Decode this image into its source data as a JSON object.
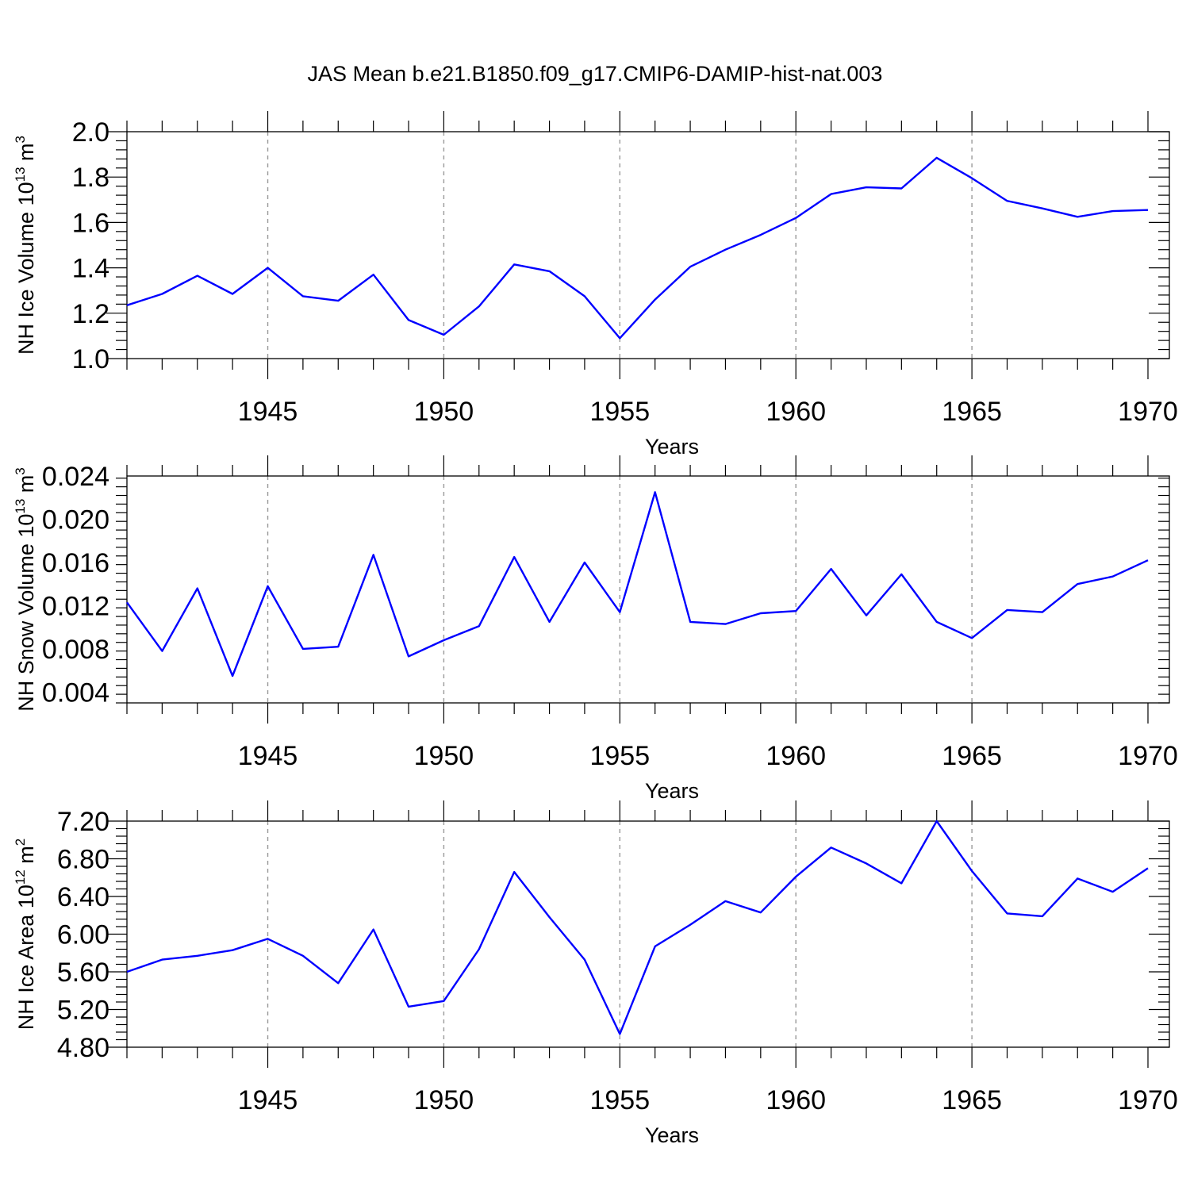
{
  "title": "JAS Mean b.e21.B1850.f09_g17.CMIP6-DAMIP-hist-nat.003",
  "series_color": "#0000ff",
  "chart_data": [
    {
      "type": "line",
      "xlabel": "Years",
      "ylabel_main": "NH Ice Volume 10",
      "ylabel_exp": "13",
      "ylabel_unit": " m",
      "ylabel_unit_exp": "3",
      "xlim": [
        1941,
        1970
      ],
      "ylim": [
        1.0,
        2.0
      ],
      "yticks": [
        1.0,
        1.2,
        1.4,
        1.6,
        1.8,
        2.0
      ],
      "ytick_labels": [
        "1.0",
        "1.2",
        "1.4",
        "1.6",
        "1.8",
        "2.0"
      ],
      "xticks": [
        1945,
        1950,
        1955,
        1960,
        1965,
        1970
      ],
      "xtick_labels": [
        "1945",
        "1950",
        "1955",
        "1960",
        "1965",
        "1970"
      ],
      "x": [
        1941,
        1942,
        1943,
        1944,
        1945,
        1946,
        1947,
        1948,
        1949,
        1950,
        1951,
        1952,
        1953,
        1954,
        1955,
        1956,
        1957,
        1958,
        1959,
        1960,
        1961,
        1962,
        1963,
        1964,
        1965,
        1966,
        1967,
        1968,
        1969,
        1970
      ],
      "values": [
        1.235,
        1.285,
        1.365,
        1.285,
        1.4,
        1.275,
        1.255,
        1.37,
        1.17,
        1.105,
        1.23,
        1.415,
        1.385,
        1.275,
        1.09,
        1.26,
        1.405,
        1.48,
        1.545,
        1.62,
        1.725,
        1.755,
        1.75,
        1.885,
        1.795,
        1.695,
        1.662,
        1.625,
        1.65,
        1.655
      ],
      "grid": "vertical dashed at major x ticks"
    },
    {
      "type": "line",
      "xlabel": "Years",
      "ylabel_main": "NH Snow Volume 10",
      "ylabel_exp": "13",
      "ylabel_unit": " m",
      "ylabel_unit_exp": "3",
      "xlim": [
        1941,
        1970
      ],
      "ylim": [
        0.003,
        0.024
      ],
      "yticks": [
        0.004,
        0.008,
        0.012,
        0.016,
        0.02,
        0.024
      ],
      "ytick_labels": [
        "0.004",
        "0.008",
        "0.012",
        "0.016",
        "0.020",
        "0.024"
      ],
      "xticks": [
        1945,
        1950,
        1955,
        1960,
        1965,
        1970
      ],
      "xtick_labels": [
        "1945",
        "1950",
        "1955",
        "1960",
        "1965",
        "1970"
      ],
      "x": [
        1941,
        1942,
        1943,
        1944,
        1945,
        1946,
        1947,
        1948,
        1949,
        1950,
        1951,
        1952,
        1953,
        1954,
        1955,
        1956,
        1957,
        1958,
        1959,
        1960,
        1961,
        1962,
        1963,
        1964,
        1965,
        1966,
        1967,
        1968,
        1969,
        1970
      ],
      "values": [
        0.0123,
        0.0078,
        0.0136,
        0.0055,
        0.0138,
        0.008,
        0.0082,
        0.0167,
        0.0073,
        0.0088,
        0.0101,
        0.0165,
        0.0105,
        0.016,
        0.0114,
        0.0225,
        0.0105,
        0.0103,
        0.0113,
        0.0115,
        0.0154,
        0.0111,
        0.0149,
        0.0105,
        0.009,
        0.0116,
        0.0114,
        0.014,
        0.0147,
        0.0162
      ],
      "grid": "vertical dashed at major x ticks"
    },
    {
      "type": "line",
      "xlabel": "Years",
      "ylabel_main": "NH Ice Area 10",
      "ylabel_exp": "12",
      "ylabel_unit": " m",
      "ylabel_unit_exp": "2",
      "xlim": [
        1941,
        1970
      ],
      "ylim": [
        4.8,
        7.2
      ],
      "yticks": [
        4.8,
        5.2,
        5.6,
        6.0,
        6.4,
        6.8,
        7.2
      ],
      "ytick_labels": [
        "4.80",
        "5.20",
        "5.60",
        "6.00",
        "6.40",
        "6.80",
        "7.20"
      ],
      "xticks": [
        1945,
        1950,
        1955,
        1960,
        1965,
        1970
      ],
      "xtick_labels": [
        "1945",
        "1950",
        "1955",
        "1960",
        "1965",
        "1970"
      ],
      "x": [
        1941,
        1942,
        1943,
        1944,
        1945,
        1946,
        1947,
        1948,
        1949,
        1950,
        1951,
        1952,
        1953,
        1954,
        1955,
        1956,
        1957,
        1958,
        1959,
        1960,
        1961,
        1962,
        1963,
        1964,
        1965,
        1966,
        1967,
        1968,
        1969,
        1970
      ],
      "values": [
        5.6,
        5.73,
        5.77,
        5.83,
        5.95,
        5.77,
        5.48,
        6.05,
        5.23,
        5.29,
        5.84,
        6.66,
        6.18,
        5.73,
        4.94,
        5.87,
        6.1,
        6.35,
        6.23,
        6.61,
        6.92,
        6.75,
        6.54,
        7.2,
        6.67,
        6.22,
        6.19,
        6.59,
        6.45,
        6.7
      ],
      "grid": "vertical dashed at major x ticks"
    }
  ]
}
